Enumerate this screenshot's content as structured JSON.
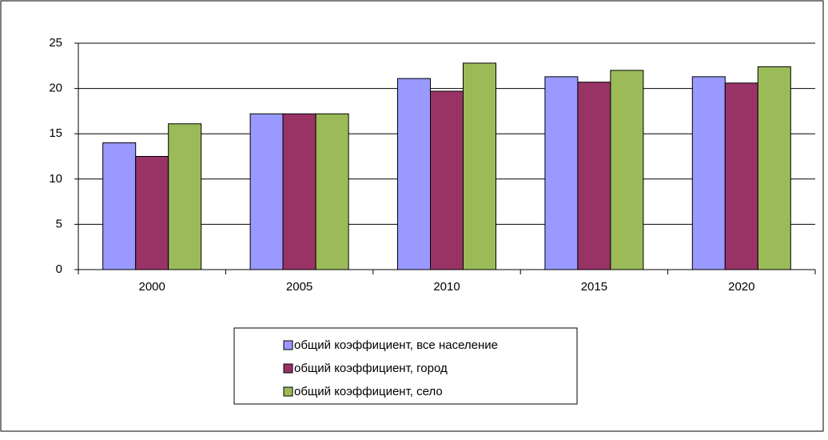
{
  "chart_data": {
    "type": "bar",
    "categories": [
      "2000",
      "2005",
      "2010",
      "2015",
      "2020"
    ],
    "series": [
      {
        "name": "общий коэффициент, все население",
        "color": "#9999ff",
        "values": [
          14,
          17.2,
          21.1,
          21.3,
          21.3
        ]
      },
      {
        "name": "общий коэффициент, город",
        "color": "#993366",
        "values": [
          12.5,
          17.2,
          19.7,
          20.7,
          20.6
        ]
      },
      {
        "name": "общий коэффициент, село",
        "color": "#9bbb59",
        "values": [
          16.1,
          17.2,
          22.8,
          22.0,
          22.4
        ]
      }
    ],
    "ylim": [
      0,
      25
    ],
    "yticks": [
      0,
      5,
      10,
      15,
      20,
      25
    ],
    "grid": true,
    "legend": "bottom"
  }
}
